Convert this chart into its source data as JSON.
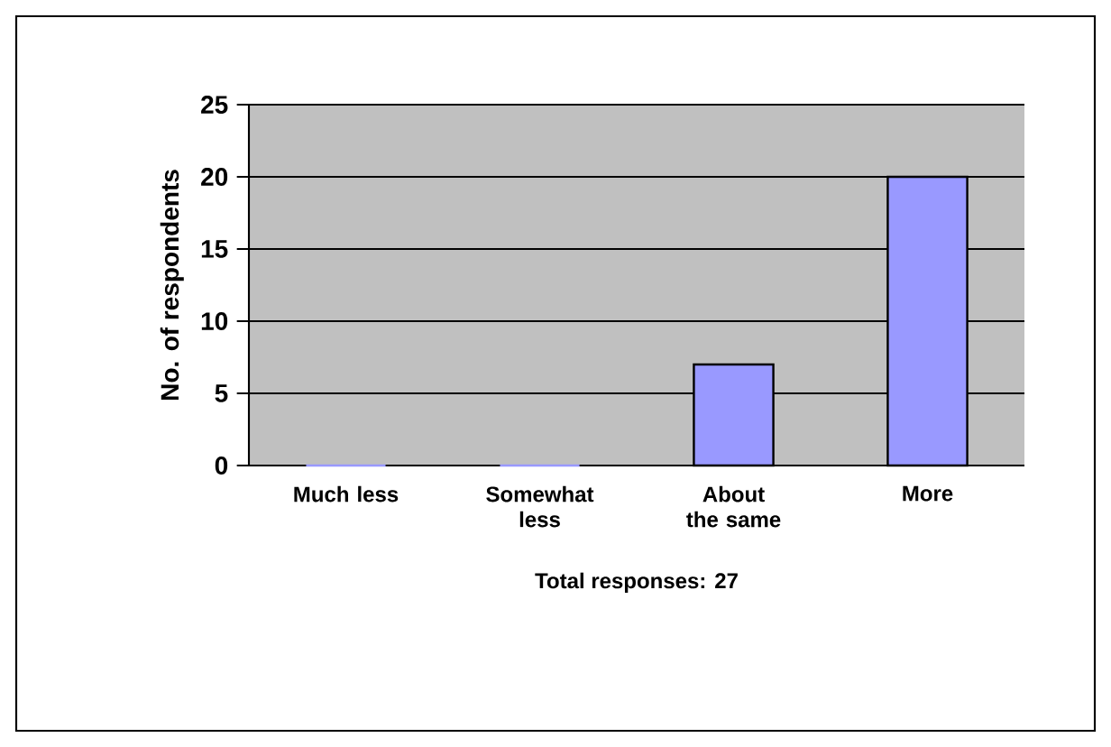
{
  "chart_data": {
    "type": "bar",
    "categories": [
      "Much less",
      "Somewhat less",
      "About the same",
      "More"
    ],
    "values": [
      0,
      0,
      7,
      20
    ],
    "color": "#9999ff",
    "ylabel": "No. of respondents",
    "xlabel": "Total responses: 27",
    "ylim": [
      0,
      25
    ],
    "yticks": [
      0,
      5,
      10,
      15,
      20,
      25
    ],
    "grid": "y"
  }
}
